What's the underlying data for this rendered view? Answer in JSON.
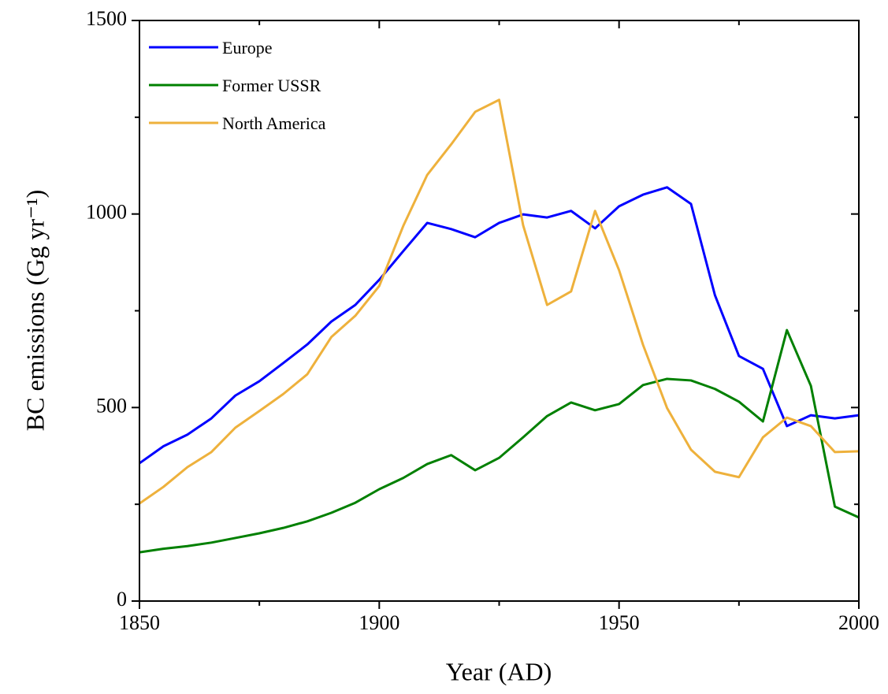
{
  "chart_data": {
    "type": "line",
    "x_label": "Year (AD)",
    "y_label": "BC emissions (Gg yr⁻¹)",
    "x": [
      1850,
      1855,
      1860,
      1865,
      1870,
      1875,
      1880,
      1885,
      1890,
      1895,
      1900,
      1905,
      1910,
      1915,
      1920,
      1925,
      1930,
      1935,
      1940,
      1945,
      1950,
      1955,
      1960,
      1965,
      1970,
      1975,
      1980,
      1985,
      1990,
      1995,
      2000
    ],
    "series": [
      {
        "name": "Europe",
        "color": "#0000ff",
        "values": [
          356,
          400,
          430,
          472,
          531,
          568,
          615,
          663,
          722,
          765,
          830,
          904,
          977,
          961,
          940,
          977,
          999,
          991,
          1008,
          963,
          1020,
          1050,
          1069,
          1026,
          790,
          633,
          600,
          452,
          480,
          472,
          480
        ]
      },
      {
        "name": "Former USSR",
        "color": "#008000",
        "values": [
          126,
          135,
          142,
          151,
          163,
          175,
          189,
          206,
          228,
          254,
          289,
          318,
          354,
          377,
          338,
          370,
          423,
          478,
          513,
          493,
          509,
          558,
          574,
          570,
          548,
          515,
          464,
          700,
          556,
          244,
          216
        ]
      },
      {
        "name": "North America",
        "color": "#eeb13c",
        "values": [
          252,
          295,
          346,
          385,
          448,
          491,
          535,
          586,
          682,
          737,
          814,
          969,
          1101,
          1180,
          1264,
          1295,
          971,
          765,
          800,
          1008,
          855,
          662,
          499,
          391,
          334,
          320,
          423,
          474,
          452,
          385,
          387
        ]
      }
    ],
    "xlim": [
      1850,
      2000
    ],
    "xticks": [
      1850,
      1900,
      1950,
      2000
    ],
    "xminorticks": [
      1875,
      1925,
      1975
    ],
    "ylim": [
      0,
      1500
    ],
    "yticks": [
      0,
      500,
      1000,
      1500
    ],
    "yminorticks": [
      250,
      750,
      1250
    ],
    "legend": "top-left",
    "grid": false
  }
}
